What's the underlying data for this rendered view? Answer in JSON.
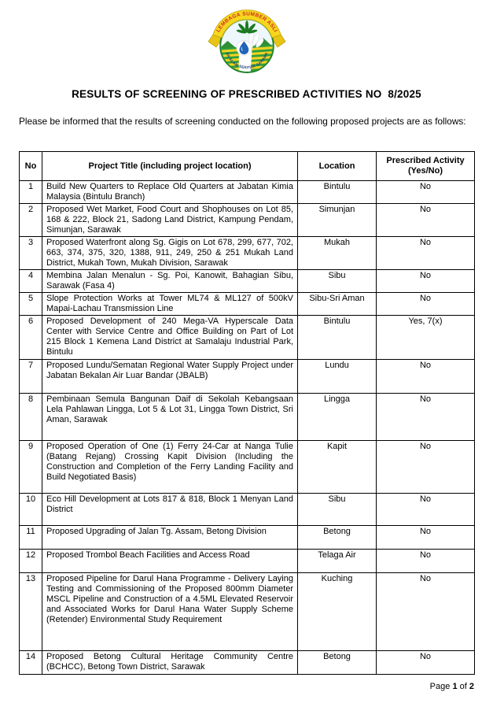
{
  "logo": {
    "top_text": "LEMBAGA SUMBER ASLI",
    "bottom_text": "DAN ALAM SEKITAR SARAWAK",
    "colors": {
      "band_yellow": "#f2d21f",
      "band_text_red": "#d03020",
      "circle_green": "#35a23f",
      "stripe_yellow": "#f2d21f",
      "droplet_blue": "#1f65b8",
      "bottom_text_navy": "#1a3a7c",
      "hand_white": "#ffffff",
      "sky": "#eef7fc"
    }
  },
  "title": "RESULTS OF SCREENING OF PRESCRIBED ACTIVITIES NO  8/2025",
  "intro": "Please be informed that the results of screening conducted on the following proposed projects are as follows:",
  "table": {
    "headers": {
      "no": "No",
      "title": "Project Title (including project location)",
      "location": "Location",
      "prescribed": "Prescribed Activity (Yes/No)"
    },
    "rows": [
      {
        "no": "1",
        "title": "Build New Quarters to Replace Old Quarters at Jabatan Kimia Malaysia (Bintulu Branch)",
        "location": "Bintulu",
        "prescribed": "No"
      },
      {
        "no": "2",
        "title": "Proposed Wet Market, Food Court and Shophouses on Lot 85, 168 & 222, Block 21, Sadong Land District, Kampung Pendam, Simunjan, Sarawak",
        "location": "Simunjan",
        "prescribed": "No"
      },
      {
        "no": "3",
        "title": "Proposed Waterfront along Sg. Gigis on Lot 678, 299, 677, 702, 663, 374, 375, 320, 1388, 911, 249, 250 & 251 Mukah Land District, Mukah Town, Mukah Division, Sarawak",
        "location": "Mukah",
        "prescribed": "No"
      },
      {
        "no": "4",
        "title": "Membina Jalan Menalun - Sg. Poi, Kanowit, Bahagian Sibu, Sarawak (Fasa 4)",
        "location": "Sibu",
        "prescribed": "No"
      },
      {
        "no": "5",
        "title": "Slope Protection Works at Tower ML74 & ML127 of 500kV Mapai-Lachau Transmission Line",
        "location": "Sibu-Sri Aman",
        "prescribed": "No"
      },
      {
        "no": "6",
        "title": "Proposed Development of 240 Mega-VA Hyperscale Data Center with Service Centre and Office Building on Part of Lot 215 Block 1 Kemena Land District at Samalaju Industrial Park, Bintulu",
        "location": "Bintulu",
        "prescribed": "Yes, 7(x)"
      },
      {
        "no": "7",
        "title": "Proposed Lundu/Sematan Regional Water Supply Project under Jabatan Bekalan Air Luar Bandar (JBALB)",
        "location": "Lundu",
        "prescribed": "No"
      },
      {
        "no": "8",
        "title": "Pembinaan Semula Bangunan Daif di Sekolah Kebangsaan Lela Pahlawan Lingga, Lot 5 & Lot 31, Lingga Town District, Sri Aman, Sarawak",
        "location": "Lingga",
        "prescribed": "No"
      },
      {
        "no": "9",
        "title": "Proposed Operation of One (1) Ferry 24-Car at Nanga Tulie (Batang Rejang) Crossing Kapit Division (Including the Construction and Completion of the Ferry Landing Facility and Build Negotiated Basis)",
        "location": "Kapit",
        "prescribed": "No"
      },
      {
        "no": "10",
        "title": "Eco Hill Development at Lots 817 & 818, Block 1 Menyan Land District",
        "location": "Sibu",
        "prescribed": "No"
      },
      {
        "no": "11",
        "title": "Proposed Upgrading of Jalan Tg. Assam, Betong Division",
        "location": "Betong",
        "prescribed": "No"
      },
      {
        "no": "12",
        "title": "Proposed Trombol Beach Facilities and Access Road",
        "location": "Telaga Air",
        "prescribed": "No"
      },
      {
        "no": "13",
        "title": "Proposed Pipeline for Darul Hana Programme - Delivery Laying Testing and Commissioning of the Proposed 800mm Diameter MSCL Pipeline and Construction of a 4.5ML Elevated Reservoir and Associated Works for Darul Hana Water Supply Scheme (Retender) Environmental Study Requirement",
        "location": "Kuching",
        "prescribed": "No"
      },
      {
        "no": "14",
        "title": "Proposed Betong Cultural Heritage Community Centre (BCHCC), Betong Town District, Sarawak",
        "location": "Betong",
        "prescribed": "No"
      }
    ]
  },
  "footer": {
    "prefix": "Page",
    "current": "1",
    "middle": "of",
    "total": "2"
  }
}
